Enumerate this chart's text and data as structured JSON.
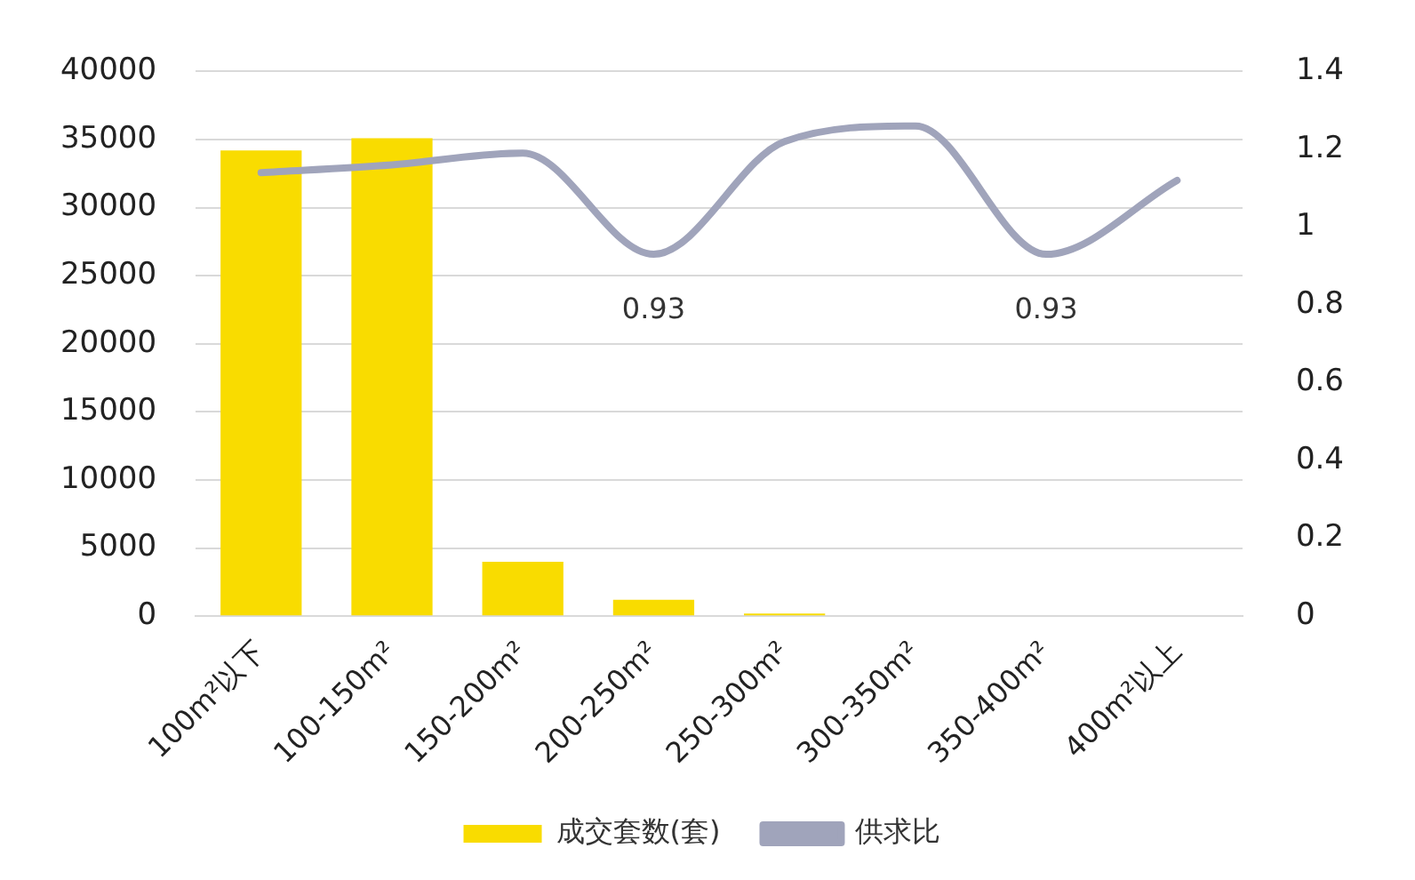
{
  "chart_data": {
    "type": "bar",
    "categories": [
      "100m²以下",
      "100-150m²",
      "150-200m²",
      "200-250m²",
      "250-300m²",
      "300-350m²",
      "350-400m²",
      "400m²以上"
    ],
    "series": [
      {
        "name": "成交套数(套)",
        "color": "#f9dc00",
        "values": [
          34200,
          35100,
          4000,
          1200,
          200,
          null,
          null,
          null
        ]
      },
      {
        "name": "供求比",
        "type": "line",
        "axis": "y2",
        "color": "#a0a4bb",
        "values": [
          1.14,
          1.16,
          1.19,
          0.93,
          1.22,
          1.26,
          0.93,
          1.12
        ],
        "value_labels": [
          null,
          null,
          null,
          "0.93",
          null,
          null,
          "0.93",
          null
        ]
      }
    ],
    "ylim": [
      0,
      40000
    ],
    "yticks": [
      0,
      5000,
      10000,
      15000,
      20000,
      25000,
      30000,
      35000,
      40000
    ],
    "y2lim": [
      0,
      1.4
    ],
    "y2ticks": [
      0,
      0.2,
      0.4,
      0.6,
      0.8,
      1,
      1.2,
      1.4
    ],
    "grid": "y",
    "legend": "bottom",
    "marker": "none"
  }
}
